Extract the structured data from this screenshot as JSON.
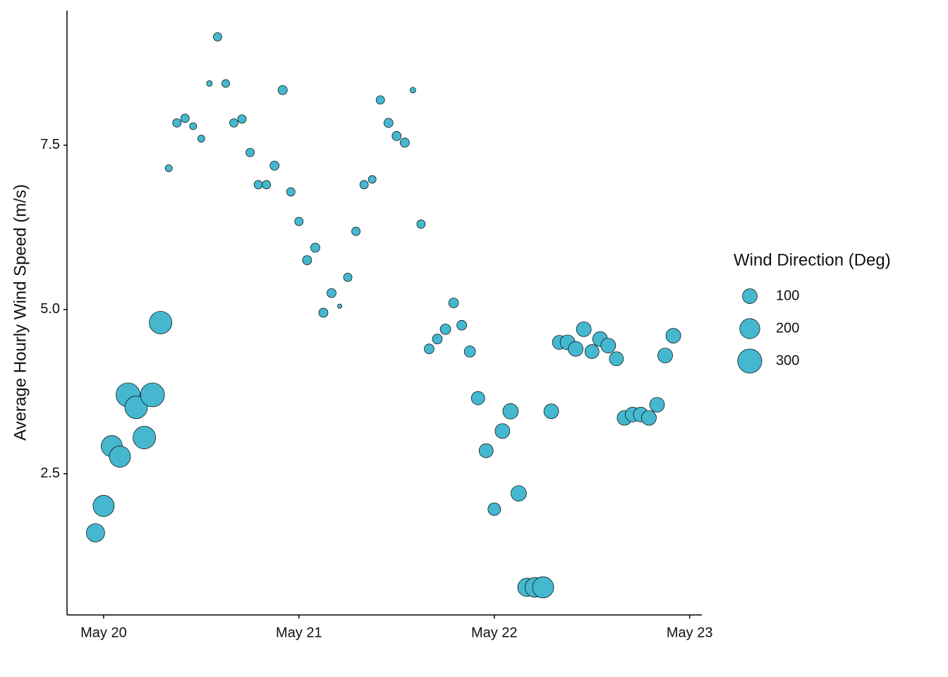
{
  "chart_data": {
    "type": "scatter",
    "y_label": "Average Hourly Wind Speed (m/s)",
    "x": [
      -1,
      0,
      1,
      2,
      3,
      4,
      5,
      6,
      7,
      8,
      9,
      10,
      11,
      12,
      13,
      14,
      15,
      16,
      17,
      18,
      19,
      20,
      21,
      22,
      23,
      24,
      25,
      26,
      27,
      28,
      29,
      30,
      31,
      32,
      33,
      34,
      35,
      36,
      37,
      38,
      39,
      40,
      41,
      42,
      43,
      44,
      45,
      46,
      47,
      48,
      49,
      50,
      51,
      52,
      53,
      54,
      55,
      56,
      57,
      58,
      59,
      60,
      61,
      62,
      63,
      64,
      65,
      66,
      67,
      68,
      69,
      70
    ],
    "values": [
      1.6,
      2.01,
      2.92,
      2.76,
      3.7,
      3.51,
      3.05,
      3.7,
      4.8,
      7.15,
      7.84,
      7.91,
      7.79,
      7.6,
      8.44,
      9.15,
      8.44,
      7.84,
      7.9,
      7.39,
      6.9,
      6.9,
      7.19,
      8.34,
      6.79,
      6.34,
      5.75,
      5.94,
      4.95,
      5.25,
      5.05,
      5.49,
      6.19,
      6.9,
      6.98,
      8.19,
      7.84,
      7.64,
      7.54,
      8.34,
      6.3,
      4.4,
      4.55,
      4.7,
      5.1,
      4.76,
      4.36,
      3.65,
      2.85,
      1.96,
      3.15,
      3.45,
      2.2,
      0.77,
      0.77,
      0.77,
      3.45,
      4.5,
      4.5,
      4.4,
      4.7,
      4.36,
      4.55,
      4.45,
      4.25,
      3.35,
      3.4,
      3.4,
      3.35,
      3.55,
      4.3,
      4.6
    ],
    "sizes": [
      163,
      225,
      225,
      225,
      297,
      260,
      260,
      297,
      260,
      15,
      25,
      25,
      15,
      15,
      8,
      25,
      20,
      25,
      25,
      25,
      25,
      25,
      31,
      31,
      25,
      25,
      31,
      31,
      31,
      31,
      3,
      25,
      25,
      25,
      20,
      25,
      31,
      31,
      31,
      8,
      25,
      37,
      37,
      44,
      37,
      37,
      52,
      79,
      89,
      69,
      100,
      111,
      111,
      163,
      193,
      225,
      100,
      89,
      100,
      100,
      100,
      89,
      100,
      100,
      89,
      100,
      100,
      100,
      100,
      100,
      100,
      100
    ],
    "color": "#45b8cf",
    "xlim": [
      -4.5,
      73.5
    ],
    "xticks": [
      {
        "value": 0,
        "label": "May 20"
      },
      {
        "value": 24,
        "label": "May 21"
      },
      {
        "value": 48,
        "label": "May 22"
      },
      {
        "value": 72,
        "label": "May 23"
      }
    ],
    "ylim": [
      0.35,
      9.55
    ],
    "yticks": [
      2.5,
      {
        "value": 5,
        "label": "5.0"
      },
      7.5
    ],
    "size_legend": {
      "title": "Wind Direction (Deg)",
      "values": [
        100,
        200,
        300
      ]
    }
  }
}
